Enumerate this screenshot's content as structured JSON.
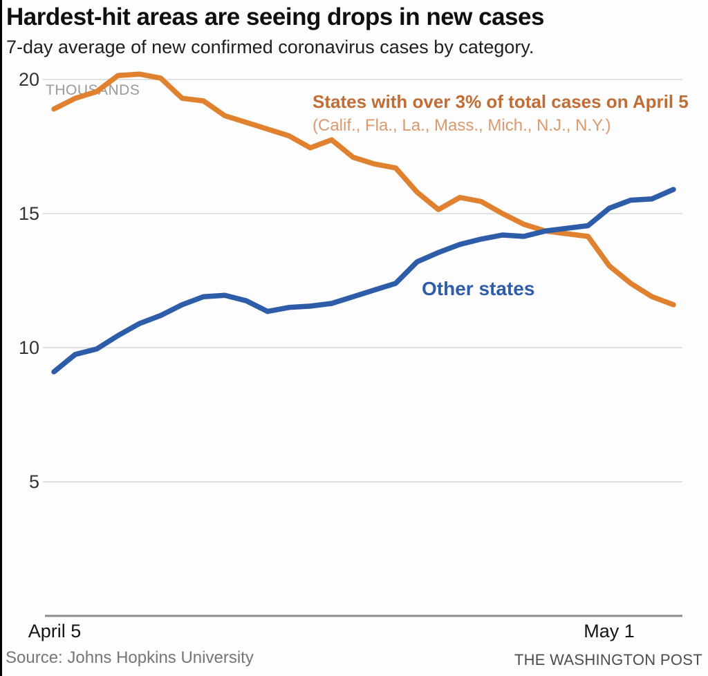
{
  "header": {
    "title": "Hardest-hit areas are seeing drops in new cases",
    "subtitle": "7-day average of new confirmed coronavirus cases by category."
  },
  "chart_data": {
    "type": "line",
    "title": "Hardest-hit areas are seeing drops in new cases",
    "subtitle": "7-day average of new confirmed coronavirus cases by category.",
    "unit": "thousands of cases",
    "unit_label": "THOUSANDS",
    "grid": "horizontal",
    "legend_position": "inline-annotations",
    "ylim": [
      0,
      20.5
    ],
    "y_ticks": [
      "20",
      "15",
      "10",
      "5"
    ],
    "y_tick_values": [
      20,
      15,
      10,
      5
    ],
    "x": [
      "April 5",
      "April 6",
      "April 7",
      "April 8",
      "April 9",
      "April 10",
      "April 11",
      "April 12",
      "April 13",
      "April 14",
      "April 15",
      "April 16",
      "April 17",
      "April 18",
      "April 19",
      "April 20",
      "April 21",
      "April 22",
      "April 23",
      "April 24",
      "April 25",
      "April 26",
      "April 27",
      "April 28",
      "April 29",
      "April 30",
      "May 1",
      "May 2",
      "May 3",
      "May 4"
    ],
    "x_ticks": [
      {
        "index": 0,
        "label": "April 5"
      },
      {
        "index": 26,
        "label": "May 1"
      }
    ],
    "series": [
      {
        "name": "States with over 3% of total cases on April 5",
        "sublabel": "(Calif., Fla., La., Mass., Mich., N.J., N.Y.)",
        "color": "#e0812f",
        "values": [
          18.9,
          19.3,
          19.55,
          20.15,
          20.2,
          20.05,
          19.3,
          19.2,
          18.65,
          18.4,
          18.15,
          17.9,
          17.45,
          17.75,
          17.1,
          16.85,
          16.7,
          15.8,
          15.15,
          15.6,
          15.45,
          15.0,
          14.6,
          14.35,
          14.25,
          14.15,
          13.05,
          12.4,
          11.9,
          11.6
        ]
      },
      {
        "name": "Other states",
        "sublabel": "",
        "color": "#2d5da8",
        "values": [
          9.1,
          9.75,
          9.95,
          10.45,
          10.9,
          11.2,
          11.6,
          11.9,
          11.95,
          11.75,
          11.35,
          11.5,
          11.55,
          11.65,
          11.9,
          12.15,
          12.4,
          13.2,
          13.55,
          13.85,
          14.05,
          14.2,
          14.15,
          14.35,
          14.45,
          14.55,
          15.2,
          15.5,
          15.55,
          15.9
        ]
      }
    ]
  },
  "footer": {
    "source": "Source: Johns Hopkins University",
    "credit": "THE WASHINGTON POST"
  }
}
